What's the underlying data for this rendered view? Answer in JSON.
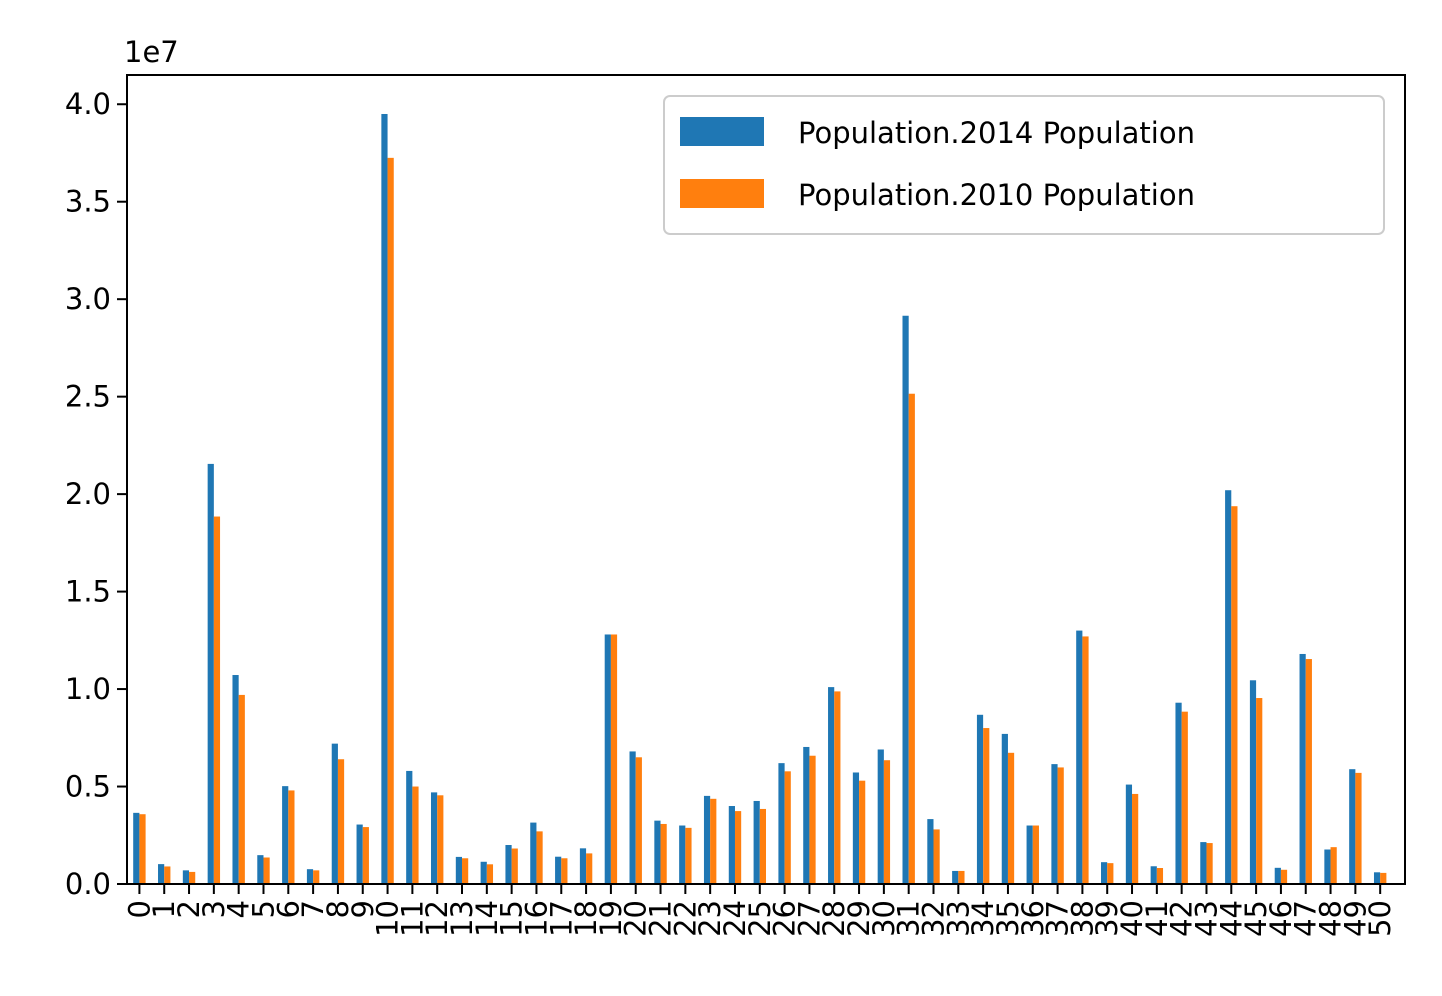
{
  "chart_data": {
    "type": "bar",
    "offset_label": "1e7",
    "categories": [
      "0",
      "1",
      "2",
      "3",
      "4",
      "5",
      "6",
      "7",
      "8",
      "9",
      "10",
      "11",
      "12",
      "13",
      "14",
      "15",
      "16",
      "17",
      "18",
      "19",
      "20",
      "21",
      "22",
      "23",
      "24",
      "25",
      "26",
      "27",
      "28",
      "29",
      "30",
      "31",
      "32",
      "33",
      "34",
      "35",
      "36",
      "37",
      "38",
      "39",
      "40",
      "41",
      "42",
      "43",
      "44",
      "45",
      "46",
      "47",
      "48",
      "49",
      "50"
    ],
    "series": [
      {
        "name": "Population.2014 Population",
        "color": "#1f77b4",
        "values": [
          3650000,
          1020000,
          700000,
          21550000,
          10720000,
          1480000,
          5020000,
          760000,
          7200000,
          3050000,
          39500000,
          5800000,
          4700000,
          1390000,
          1140000,
          2000000,
          3150000,
          1400000,
          1830000,
          12800000,
          6800000,
          3250000,
          3000000,
          4520000,
          4000000,
          4260000,
          6200000,
          7030000,
          10100000,
          5720000,
          6900000,
          29150000,
          3330000,
          670000,
          8680000,
          7700000,
          3000000,
          6150000,
          13000000,
          1120000,
          5100000,
          910000,
          9300000,
          2150000,
          20200000,
          10450000,
          830000,
          11800000,
          1770000,
          5890000,
          600000
        ]
      },
      {
        "name": "Population.2010 Population",
        "color": "#ff7f0e",
        "values": [
          3580000,
          900000,
          620000,
          18850000,
          9700000,
          1360000,
          4800000,
          700000,
          6400000,
          2920000,
          37250000,
          5000000,
          4550000,
          1320000,
          1010000,
          1820000,
          2700000,
          1320000,
          1570000,
          12800000,
          6500000,
          3080000,
          2880000,
          4370000,
          3740000,
          3850000,
          5780000,
          6580000,
          9880000,
          5300000,
          6350000,
          25150000,
          2800000,
          670000,
          8000000,
          6730000,
          3000000,
          5980000,
          12700000,
          1070000,
          4620000,
          820000,
          8840000,
          2100000,
          19380000,
          9540000,
          730000,
          11540000,
          1890000,
          5700000,
          570000
        ]
      }
    ],
    "yticks": [
      "0.0",
      "0.5",
      "1.0",
      "1.5",
      "2.0",
      "2.5",
      "3.0",
      "3.5",
      "4.0"
    ],
    "ylim": [
      0,
      41500000
    ],
    "legend_position": "upper right",
    "grid": false
  }
}
